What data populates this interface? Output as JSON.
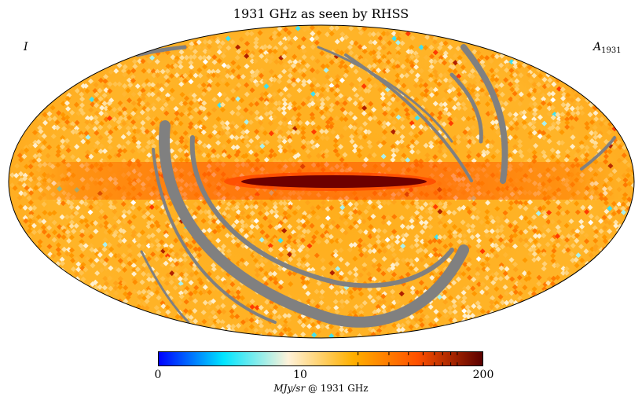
{
  "title": "1931 GHz as seen by RHSS",
  "stokes_label": "I",
  "component_label": {
    "symbol": "A",
    "subscript": "1931"
  },
  "colorbar": {
    "ticks": [
      {
        "label": "0",
        "value": 0
      },
      {
        "label": "10",
        "value": 10
      },
      {
        "label": "200",
        "value": 200
      }
    ],
    "unit_label": "MJy/sr",
    "unit_suffix": "@ 1931 GHz",
    "colors": [
      "#0000ff",
      "#00e5ff",
      "#fff2d9",
      "#ffb000",
      "#ff5000",
      "#5a0000"
    ],
    "minor_tick_fractions": [
      0.615,
      0.71,
      0.77,
      0.815,
      0.85,
      0.875,
      0.9,
      0.92
    ]
  },
  "map_colors": {
    "masked": "#808080",
    "background": "#ffaf1e",
    "galactic_plane": "#6e0000",
    "outline": "#000000"
  }
}
